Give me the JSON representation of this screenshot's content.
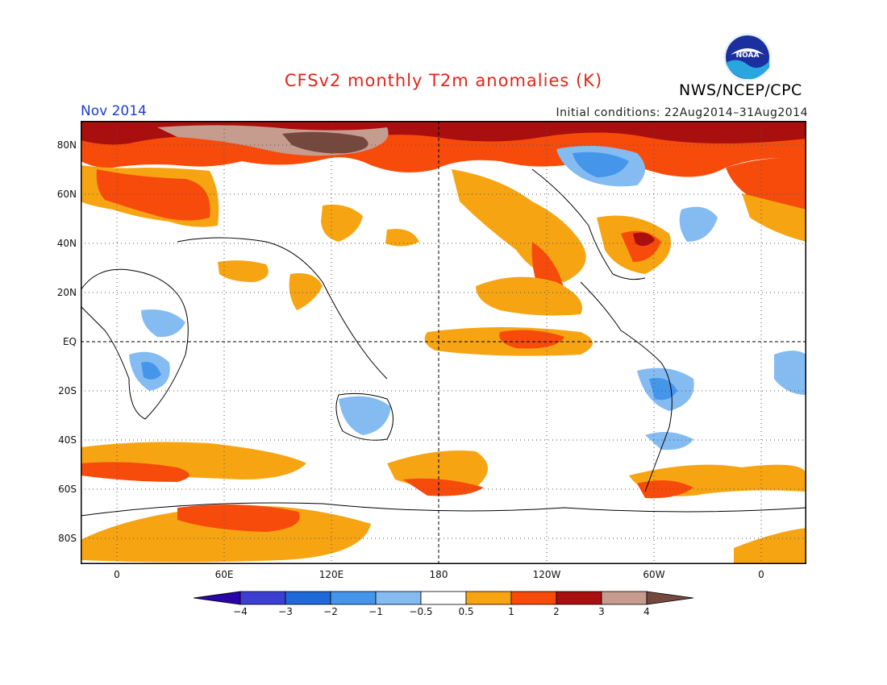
{
  "title": "CFSv2 monthly T2m anomalies (K)",
  "month": "Nov 2014",
  "initial_conditions": "Initial conditions: 22Aug2014–31Aug2014",
  "agency": "NWS/NCEP/CPC",
  "logo_text": "NOAA",
  "map": {
    "lat_labels": [
      "80N",
      "60N",
      "40N",
      "20N",
      "EQ",
      "20S",
      "40S",
      "60S",
      "80S"
    ],
    "lon_labels": [
      "0",
      "60E",
      "120E",
      "180",
      "120W",
      "60W",
      "0"
    ],
    "projection": "cylindrical equidistant, centered on 180",
    "grid": "dotted"
  },
  "colorbar": {
    "labels": [
      "−4",
      "−3",
      "−2",
      "−1",
      "−0.5",
      "0.5",
      "1",
      "2",
      "3",
      "4"
    ],
    "colors": [
      "#2a05a8",
      "#3d3fd0",
      "#1f6ad8",
      "#4596ea",
      "#84bcf2",
      "#ffffff",
      "#f7a412",
      "#f74b0c",
      "#a80f0e",
      "#c59c8e",
      "#74483c"
    ]
  },
  "colors": {
    "title": "#e0261b",
    "month": "#1a3fcc"
  }
}
